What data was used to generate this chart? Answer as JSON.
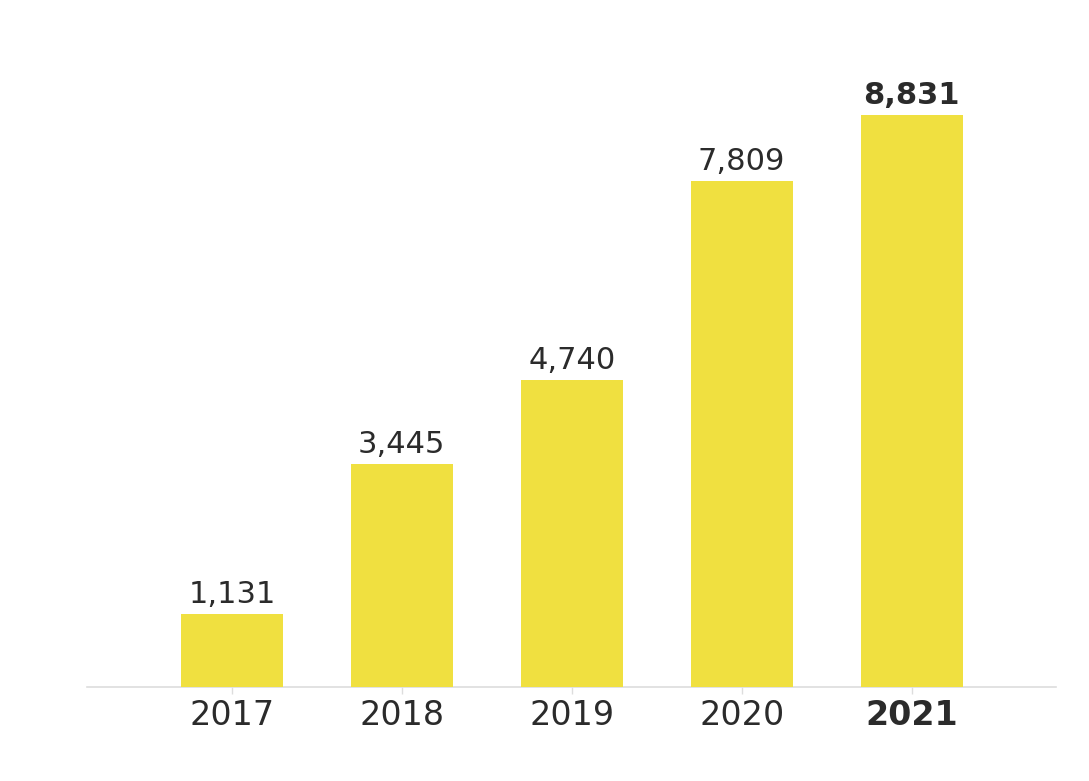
{
  "categories": [
    "2017",
    "2018",
    "2019",
    "2020",
    "2021"
  ],
  "values": [
    1131,
    3445,
    4740,
    7809,
    8831
  ],
  "labels": [
    "1,131",
    "3,445",
    "4,740",
    "7,809",
    "8,831"
  ],
  "bar_color": "#F0E040",
  "background_color": "#FFFFFF",
  "grid_color": "#DDDDDD",
  "text_color": "#2B2B2B",
  "ylim": [
    0,
    10000
  ],
  "bar_width": 0.6,
  "label_fontsize": 22,
  "tick_fontsize": 24,
  "grid_linewidth": 0.9,
  "yticks": [
    1000,
    2000,
    3000,
    4000,
    5000,
    6000,
    7000,
    8000,
    9000,
    10000
  ]
}
